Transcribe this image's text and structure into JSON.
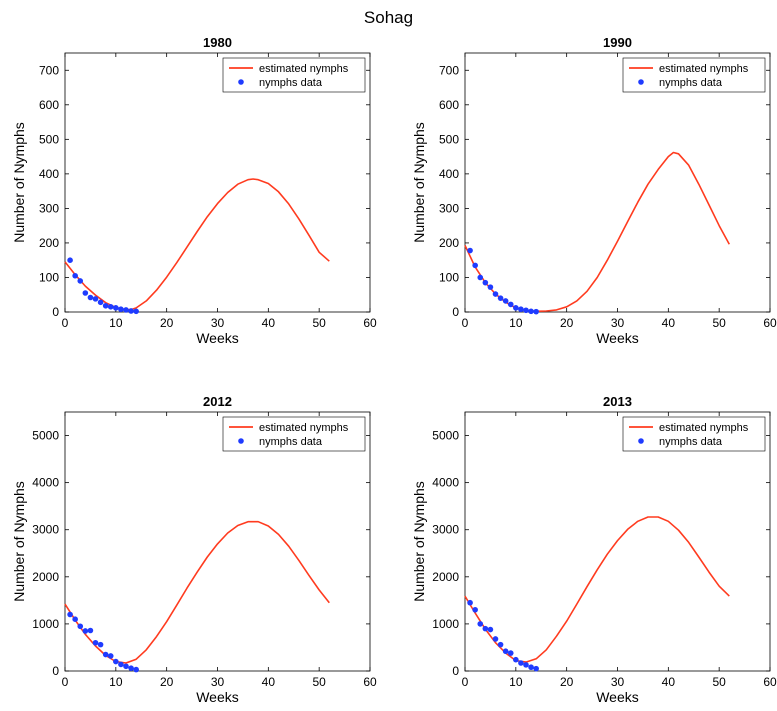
{
  "figure_title": "Sohag",
  "chart_data": [
    {
      "type": "line",
      "title": "1980",
      "xlabel": "Weeks",
      "ylabel": "Number of Nymphs",
      "xlim": [
        0,
        60
      ],
      "ylim": [
        0,
        750
      ],
      "xticks": [
        0,
        10,
        20,
        30,
        40,
        50,
        60
      ],
      "yticks": [
        0,
        100,
        200,
        300,
        400,
        500,
        600,
        700
      ],
      "grid": false,
      "legend": "top-right",
      "series": [
        {
          "name": "estimated nymphs",
          "kind": "line",
          "color": "#ff3b1f",
          "x": [
            0,
            2,
            4,
            6,
            8,
            10,
            12,
            13,
            14,
            16,
            18,
            20,
            22,
            24,
            26,
            28,
            30,
            32,
            34,
            36,
            37,
            38,
            40,
            42,
            44,
            46,
            48,
            50,
            52
          ],
          "y": [
            145,
            108,
            75,
            49,
            27,
            13,
            7,
            7,
            12,
            32,
            63,
            101,
            143,
            188,
            233,
            276,
            314,
            346,
            370,
            383,
            385,
            383,
            372,
            348,
            313,
            270,
            222,
            173,
            147
          ]
        },
        {
          "name": "nymphs data",
          "kind": "scatter",
          "color": "#1f3bff",
          "x": [
            1,
            2,
            3,
            4,
            5,
            6,
            7,
            8,
            9,
            10,
            11,
            12,
            13,
            14
          ],
          "y": [
            150,
            105,
            90,
            55,
            42,
            38,
            28,
            18,
            15,
            12,
            8,
            6,
            3,
            2
          ]
        }
      ]
    },
    {
      "type": "line",
      "title": "1990",
      "xlabel": "Weeks",
      "ylabel": "Number of Nymphs",
      "xlim": [
        0,
        60
      ],
      "ylim": [
        0,
        750
      ],
      "xticks": [
        0,
        10,
        20,
        30,
        40,
        50,
        60
      ],
      "yticks": [
        0,
        100,
        200,
        300,
        400,
        500,
        600,
        700
      ],
      "grid": false,
      "legend": "top-right",
      "series": [
        {
          "name": "estimated nymphs",
          "kind": "line",
          "color": "#ff3b1f",
          "x": [
            0,
            2,
            4,
            6,
            8,
            10,
            12,
            14,
            16,
            18,
            20,
            22,
            24,
            26,
            28,
            30,
            32,
            34,
            36,
            38,
            40,
            41,
            42,
            44,
            46,
            48,
            50,
            52
          ],
          "y": [
            193,
            130,
            85,
            52,
            28,
            12,
            4,
            2,
            3,
            6,
            15,
            32,
            60,
            100,
            150,
            205,
            262,
            318,
            370,
            413,
            450,
            462,
            458,
            425,
            370,
            310,
            250,
            196
          ]
        },
        {
          "name": "nymphs data",
          "kind": "scatter",
          "color": "#1f3bff",
          "x": [
            1,
            2,
            3,
            4,
            5,
            6,
            7,
            8,
            9,
            10,
            11,
            12,
            13,
            14
          ],
          "y": [
            178,
            135,
            100,
            85,
            72,
            52,
            40,
            32,
            22,
            12,
            8,
            5,
            2,
            1
          ]
        }
      ]
    },
    {
      "type": "line",
      "title": "2012",
      "xlabel": "Weeks",
      "ylabel": "Number of Nymphs",
      "xlim": [
        0,
        60
      ],
      "ylim": [
        0,
        5500
      ],
      "xticks": [
        0,
        10,
        20,
        30,
        40,
        50,
        60
      ],
      "yticks": [
        0,
        1000,
        2000,
        3000,
        4000,
        5000
      ],
      "grid": false,
      "legend": "top-right",
      "series": [
        {
          "name": "estimated nymphs",
          "kind": "line",
          "color": "#ff3b1f",
          "x": [
            0,
            2,
            4,
            6,
            8,
            10,
            12,
            14,
            16,
            18,
            20,
            22,
            24,
            26,
            28,
            30,
            32,
            34,
            36,
            38,
            40,
            42,
            44,
            46,
            48,
            50,
            52
          ],
          "y": [
            1420,
            1080,
            780,
            530,
            330,
            200,
            170,
            250,
            450,
            730,
            1050,
            1400,
            1760,
            2100,
            2420,
            2700,
            2930,
            3090,
            3170,
            3170,
            3080,
            2900,
            2650,
            2350,
            2030,
            1720,
            1450
          ]
        },
        {
          "name": "nymphs data",
          "kind": "scatter",
          "color": "#1f3bff",
          "x": [
            1,
            2,
            3,
            4,
            5,
            6,
            7,
            8,
            9,
            10,
            11,
            12,
            13,
            14
          ],
          "y": [
            1200,
            1100,
            950,
            850,
            860,
            600,
            560,
            350,
            320,
            200,
            140,
            100,
            60,
            30
          ]
        }
      ]
    },
    {
      "type": "line",
      "title": "2013",
      "xlabel": "Weeks",
      "ylabel": "Number of Nymphs",
      "xlim": [
        0,
        60
      ],
      "ylim": [
        0,
        5500
      ],
      "xticks": [
        0,
        10,
        20,
        30,
        40,
        50,
        60
      ],
      "yticks": [
        0,
        1000,
        2000,
        3000,
        4000,
        5000
      ],
      "grid": false,
      "legend": "top-right",
      "series": [
        {
          "name": "estimated nymphs",
          "kind": "line",
          "color": "#ff3b1f",
          "x": [
            0,
            2,
            4,
            6,
            8,
            10,
            12,
            14,
            16,
            18,
            20,
            22,
            24,
            26,
            28,
            30,
            32,
            34,
            36,
            38,
            40,
            42,
            44,
            46,
            48,
            50,
            52
          ],
          "y": [
            1590,
            1230,
            890,
            600,
            380,
            220,
            190,
            260,
            450,
            740,
            1060,
            1420,
            1790,
            2150,
            2480,
            2770,
            3010,
            3180,
            3270,
            3270,
            3180,
            2990,
            2730,
            2420,
            2100,
            1800,
            1590
          ]
        },
        {
          "name": "nymphs data",
          "kind": "scatter",
          "color": "#1f3bff",
          "x": [
            1,
            2,
            3,
            4,
            5,
            6,
            7,
            8,
            9,
            10,
            11,
            12,
            13,
            14
          ],
          "y": [
            1450,
            1300,
            1000,
            900,
            880,
            680,
            560,
            420,
            380,
            240,
            170,
            130,
            80,
            50
          ]
        }
      ]
    }
  ]
}
